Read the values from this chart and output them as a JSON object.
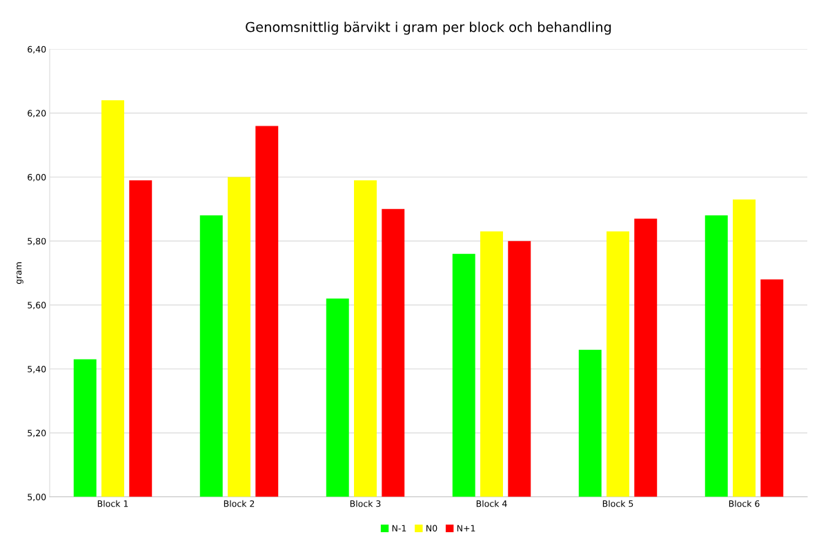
{
  "chart_data": {
    "type": "bar",
    "title": "Genomsnittlig bärvikt i gram per block och behandling",
    "ylabel": "gram",
    "categories": [
      "Block 1",
      "Block 2",
      "Block 3",
      "Block 4",
      "Block 5",
      "Block 6"
    ],
    "series": [
      {
        "name": "N-1",
        "color": "#00ff00",
        "values": [
          5.43,
          5.88,
          5.62,
          5.76,
          5.46,
          5.88
        ]
      },
      {
        "name": "N0",
        "color": "#ffff00",
        "values": [
          6.24,
          6.0,
          5.99,
          5.83,
          5.83,
          5.93
        ]
      },
      {
        "name": "N+1",
        "color": "#ff0000",
        "values": [
          5.99,
          6.16,
          5.9,
          5.8,
          5.87,
          5.68
        ]
      }
    ],
    "ylim": [
      5.0,
      6.4
    ],
    "yticks": [
      {
        "value": 5.0,
        "label": "5,00"
      },
      {
        "value": 5.2,
        "label": "5,20"
      },
      {
        "value": 5.4,
        "label": "5,40"
      },
      {
        "value": 5.6,
        "label": "5,60"
      },
      {
        "value": 5.8,
        "label": "5,80"
      },
      {
        "value": 6.0,
        "label": "6,00"
      },
      {
        "value": 6.2,
        "label": "6,20"
      },
      {
        "value": 6.4,
        "label": "6,40"
      }
    ],
    "grid": "y",
    "legend": "bottom"
  }
}
